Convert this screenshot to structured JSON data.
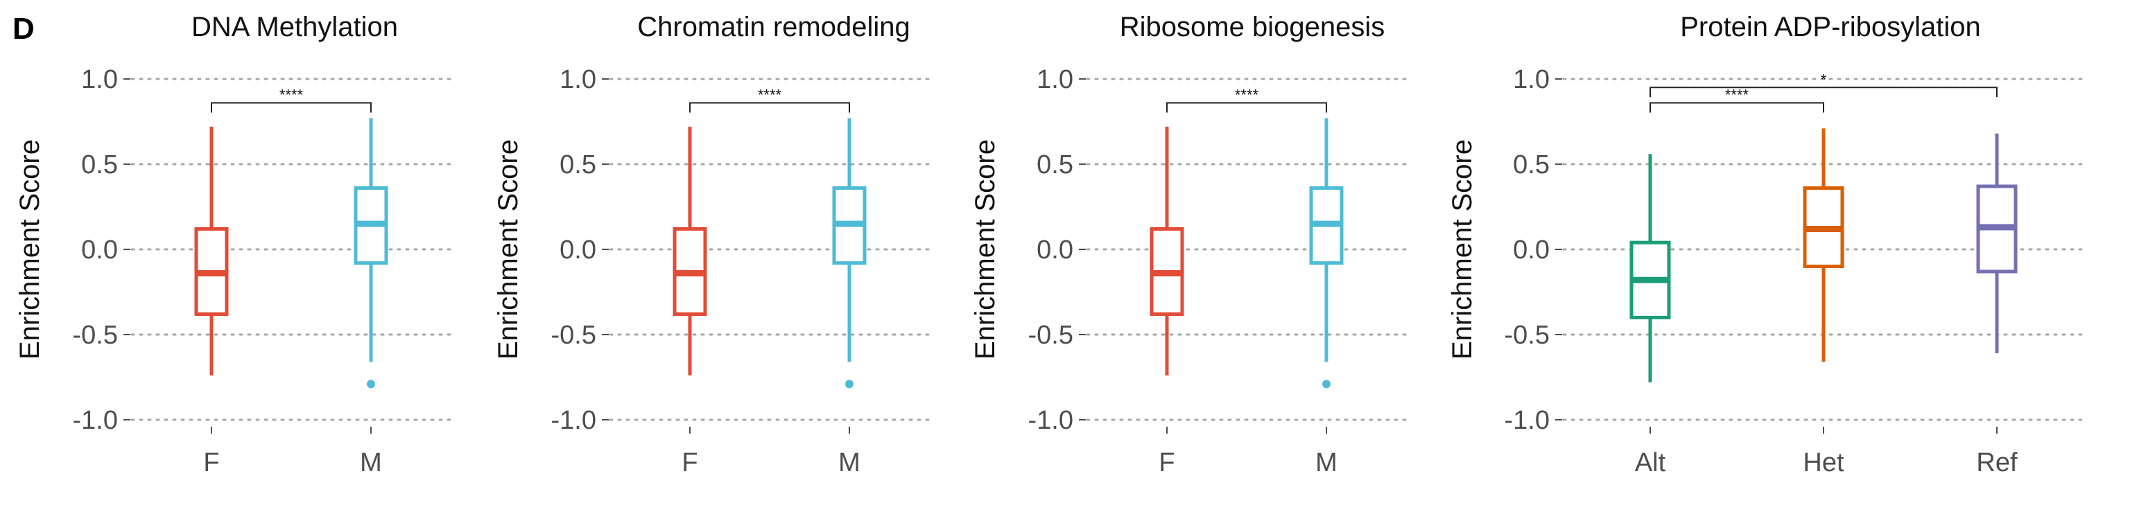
{
  "panel_label": "D",
  "chart_data": [
    {
      "type": "box",
      "title": "DNA Methylation",
      "ylabel": "Enrichment Score",
      "ylim": [
        -1.0,
        1.0
      ],
      "yticks": [
        1.0,
        0.5,
        0.0,
        -0.5,
        -1.0
      ],
      "ytick_labels": [
        "1.0",
        "0.5",
        "0.0",
        "-0.5",
        "-1.0"
      ],
      "grid": "horizontal dotted",
      "categories": [
        "F",
        "M"
      ],
      "colors": [
        "#E24B35",
        "#4DBBD5"
      ],
      "boxes": [
        {
          "category": "F",
          "whisker_low": -0.74,
          "q1": -0.38,
          "median": -0.14,
          "q3": 0.12,
          "whisker_high": 0.72,
          "outliers": []
        },
        {
          "category": "M",
          "whisker_low": -0.66,
          "q1": -0.08,
          "median": 0.15,
          "q3": 0.36,
          "whisker_high": 0.77,
          "outliers": [
            -0.79
          ]
        }
      ],
      "significance": [
        {
          "from": "F",
          "to": "M",
          "label": "****",
          "y": 0.86
        }
      ]
    },
    {
      "type": "box",
      "title": "Chromatin remodeling",
      "ylabel": "Enrichment Score",
      "ylim": [
        -1.0,
        1.0
      ],
      "yticks": [
        1.0,
        0.5,
        0.0,
        -0.5,
        -1.0
      ],
      "ytick_labels": [
        "1.0",
        "0.5",
        "0.0",
        "-0.5",
        "-1.0"
      ],
      "grid": "horizontal dotted",
      "categories": [
        "F",
        "M"
      ],
      "colors": [
        "#E24B35",
        "#4DBBD5"
      ],
      "boxes": [
        {
          "category": "F",
          "whisker_low": -0.74,
          "q1": -0.38,
          "median": -0.14,
          "q3": 0.12,
          "whisker_high": 0.72,
          "outliers": []
        },
        {
          "category": "M",
          "whisker_low": -0.66,
          "q1": -0.08,
          "median": 0.15,
          "q3": 0.36,
          "whisker_high": 0.77,
          "outliers": [
            -0.79
          ]
        }
      ],
      "significance": [
        {
          "from": "F",
          "to": "M",
          "label": "****",
          "y": 0.86
        }
      ]
    },
    {
      "type": "box",
      "title": "Ribosome biogenesis",
      "ylabel": "Enrichment Score",
      "ylim": [
        -1.0,
        1.0
      ],
      "yticks": [
        1.0,
        0.5,
        0.0,
        -0.5,
        -1.0
      ],
      "ytick_labels": [
        "1.0",
        "0.5",
        "0.0",
        "-0.5",
        "-1.0"
      ],
      "grid": "horizontal dotted",
      "categories": [
        "F",
        "M"
      ],
      "colors": [
        "#E24B35",
        "#4DBBD5"
      ],
      "boxes": [
        {
          "category": "F",
          "whisker_low": -0.74,
          "q1": -0.38,
          "median": -0.14,
          "q3": 0.12,
          "whisker_high": 0.72,
          "outliers": []
        },
        {
          "category": "M",
          "whisker_low": -0.66,
          "q1": -0.08,
          "median": 0.15,
          "q3": 0.36,
          "whisker_high": 0.77,
          "outliers": [
            -0.79
          ]
        }
      ],
      "significance": [
        {
          "from": "F",
          "to": "M",
          "label": "****",
          "y": 0.86
        }
      ]
    },
    {
      "type": "box",
      "title": "Protein ADP-ribosylation",
      "ylabel": "Enrichment Score",
      "ylim": [
        -1.0,
        1.0
      ],
      "yticks": [
        1.0,
        0.5,
        0.0,
        -0.5,
        -1.0
      ],
      "ytick_labels": [
        "1.0",
        "0.5",
        "0.0",
        "-0.5",
        "-1.0"
      ],
      "grid": "horizontal dotted",
      "categories": [
        "Alt",
        "Het",
        "Ref"
      ],
      "colors": [
        "#1B9E77",
        "#D95F02",
        "#7570B3"
      ],
      "boxes": [
        {
          "category": "Alt",
          "whisker_low": -0.78,
          "q1": -0.4,
          "median": -0.18,
          "q3": 0.04,
          "whisker_high": 0.56,
          "outliers": []
        },
        {
          "category": "Het",
          "whisker_low": -0.66,
          "q1": -0.1,
          "median": 0.12,
          "q3": 0.36,
          "whisker_high": 0.71,
          "outliers": []
        },
        {
          "category": "Ref",
          "whisker_low": -0.61,
          "q1": -0.13,
          "median": 0.13,
          "q3": 0.37,
          "whisker_high": 0.68,
          "outliers": []
        }
      ],
      "significance": [
        {
          "from": "Alt",
          "to": "Het",
          "label": "****",
          "y": 0.86
        },
        {
          "from": "Alt",
          "to": "Ref",
          "label": "*",
          "y": 0.95
        }
      ]
    }
  ]
}
